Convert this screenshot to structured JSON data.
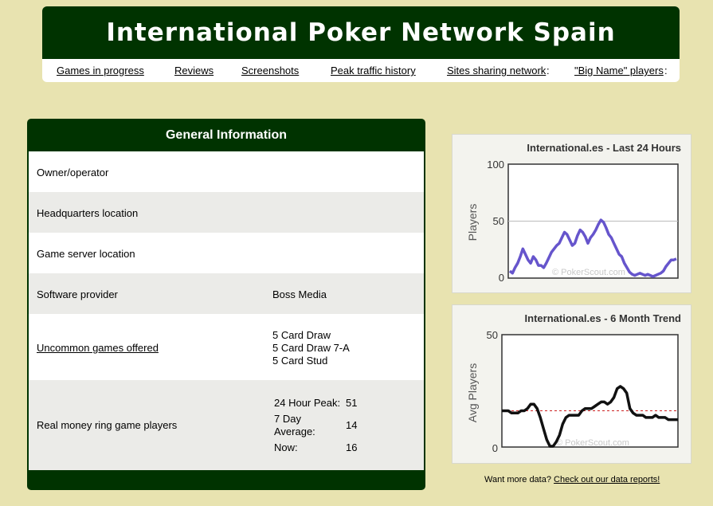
{
  "site": {
    "title": "International Poker Network Spain",
    "nav": [
      {
        "label": "Games in progress"
      },
      {
        "label": "Reviews"
      },
      {
        "label": "Screenshots"
      },
      {
        "label": "Peak traffic history"
      },
      {
        "label": "Sites sharing network"
      },
      {
        "label": "\"Big Name\" players"
      }
    ]
  },
  "general_info": {
    "title": "General Information",
    "owner_label": "Owner/operator",
    "hq_label": "Headquarters location",
    "server_label": "Game server location",
    "software_label": "Software provider",
    "software_value": "Boss Media",
    "uncommon_label": "Uncommon games offered",
    "uncommon_games": [
      "5 Card Draw",
      "5 Card Draw 7-A",
      "5 Card Stud"
    ],
    "ring_label": "Real money ring game players",
    "peak_label": "24 Hour Peak:",
    "peak_value": "51",
    "avg_label_1": "7 Day",
    "avg_label_2": "Average:",
    "avg_value": "14",
    "now_label": "Now:",
    "now_value": "16"
  },
  "footer": {
    "prefix": "Want more data?",
    "link": "Check out our data reports!"
  },
  "colors": {
    "header_green": "#003300",
    "background": "#e8e3b0",
    "line_24h": "#6655cc",
    "line_trend": "#111111",
    "avg_line": "#cc2222"
  },
  "chart_data": [
    {
      "type": "line",
      "title": "International.es - Last 24 Hours",
      "ylabel": "Players",
      "ylim": [
        0,
        100
      ],
      "yticks": [
        "0",
        "50",
        "100"
      ],
      "watermark": "© PokerScout.com",
      "grid": true,
      "values": [
        5,
        3,
        8,
        12,
        18,
        25,
        20,
        15,
        12,
        18,
        15,
        10,
        10,
        8,
        12,
        17,
        22,
        25,
        28,
        30,
        35,
        40,
        38,
        33,
        28,
        30,
        37,
        42,
        40,
        36,
        30,
        35,
        38,
        42,
        47,
        51,
        49,
        44,
        38,
        35,
        30,
        25,
        20,
        18,
        12,
        8,
        4,
        2,
        1,
        2,
        3,
        2,
        1,
        2,
        1,
        0,
        1,
        2,
        3,
        5,
        9,
        12,
        15,
        15,
        16
      ]
    },
    {
      "type": "line",
      "title": "International.es - 6 Month Trend",
      "ylabel": "Avg Players",
      "ylim": [
        0,
        50
      ],
      "yticks": [
        "0",
        "50"
      ],
      "watermark": "© PokerScout.com",
      "average_line": 16,
      "values": [
        16,
        16,
        16,
        15,
        15,
        15,
        16,
        16,
        17,
        19,
        19,
        17,
        13,
        8,
        3,
        0,
        0,
        2,
        5,
        10,
        13,
        14,
        14,
        14,
        14,
        16,
        17,
        17,
        17,
        18,
        19,
        20,
        20,
        19,
        20,
        22,
        26,
        27,
        26,
        24,
        17,
        15,
        14,
        14,
        14,
        13,
        13,
        13,
        14,
        13,
        13,
        13,
        12,
        12,
        12,
        12
      ]
    }
  ]
}
